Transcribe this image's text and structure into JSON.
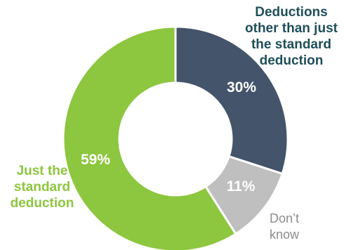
{
  "chart_data": {
    "type": "pie",
    "donut": true,
    "slices": [
      {
        "label": "Deductions other than just the standard deduction",
        "label_lines": [
          "Deductions",
          "other than just",
          "the standard",
          "deduction"
        ],
        "value": 30,
        "value_label": "30%",
        "color": "#44546a"
      },
      {
        "label": "Don’t know",
        "label_lines": [
          "Don’t",
          "know"
        ],
        "value": 11,
        "value_label": "11%",
        "color": "#bfbfbf"
      },
      {
        "label": "Just the standard deduction",
        "label_lines": [
          "Just the",
          "standard",
          "deduction"
        ],
        "value": 59,
        "value_label": "59%",
        "color": "#8dc63f"
      }
    ],
    "label_colors": [
      "#1f4e5a",
      "#8c8c8c",
      "#8dc63f"
    ],
    "start_angle": "top (12 o'clock)",
    "direction": "clockwise",
    "legend": "none"
  }
}
